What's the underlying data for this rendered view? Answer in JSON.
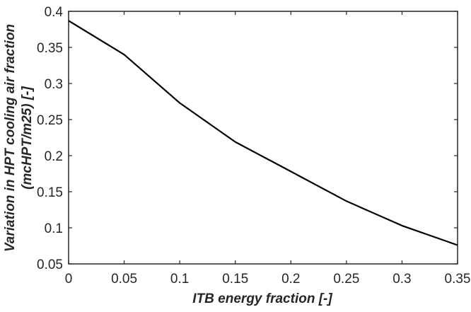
{
  "chart_data": {
    "type": "line",
    "title": "",
    "xlabel": "ITB energy fraction [-]",
    "ylabel_line1": "Variation in HPT cooling air fraction",
    "ylabel_line2": "(mcHPT/m25) [-]",
    "xlim": [
      0,
      0.35
    ],
    "ylim": [
      0.05,
      0.4
    ],
    "grid": false,
    "legend": null,
    "x_ticks": [
      "0",
      "0.05",
      "0.1",
      "0.15",
      "0.2",
      "0.25",
      "0.3",
      "0.35"
    ],
    "y_ticks": [
      "0.05",
      "0.1",
      "0.15",
      "0.2",
      "0.25",
      "0.3",
      "0.35",
      "0.4"
    ],
    "x": [
      0,
      0.05,
      0.1,
      0.15,
      0.2,
      0.25,
      0.3,
      0.35
    ],
    "series": [
      {
        "name": "HPT cooling air fraction",
        "color": "#000000",
        "values": [
          0.387,
          0.34,
          0.273,
          0.219,
          0.178,
          0.137,
          0.103,
          0.076
        ]
      }
    ]
  }
}
